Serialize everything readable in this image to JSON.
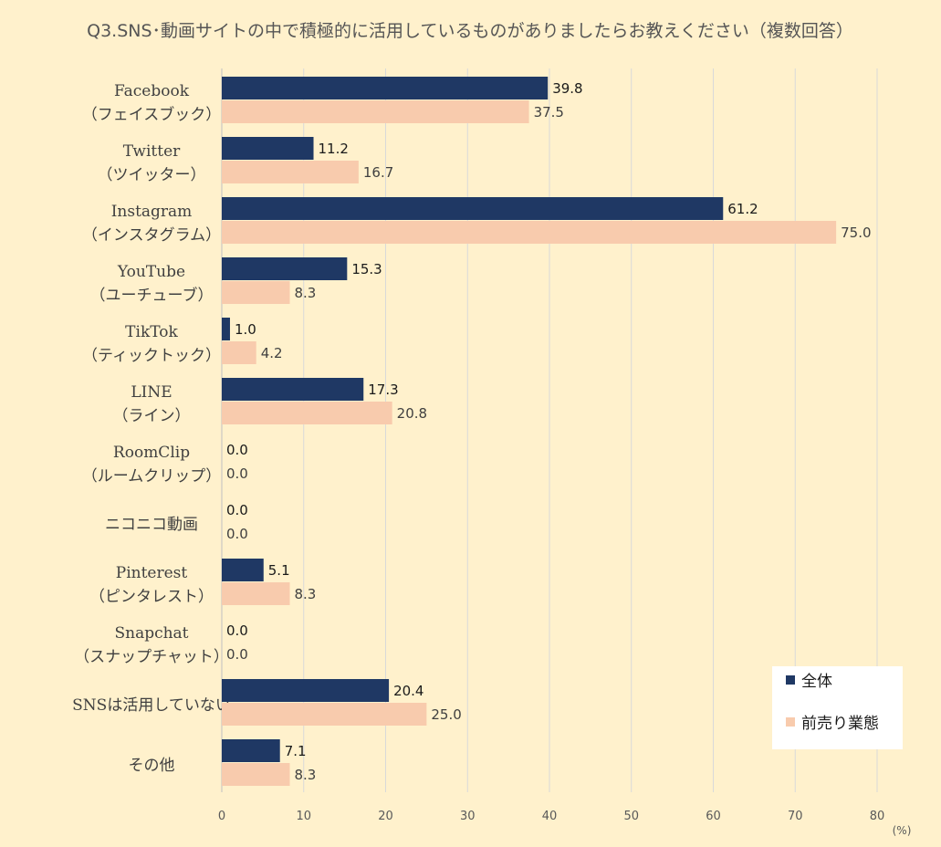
{
  "chart_data": {
    "type": "bar",
    "orientation": "horizontal",
    "title": "Q3.SNS･動画サイトの中で積極的に活用しているものがありましたらお教えください（複数回答）",
    "categories": [
      [
        "Facebook",
        "（フェイスブック）"
      ],
      [
        "Twitter",
        "（ツイッター）"
      ],
      [
        "Instagram",
        "（インスタグラム）"
      ],
      [
        "YouTube",
        "（ユーチューブ）"
      ],
      [
        "TikTok",
        "（ティックトック）"
      ],
      [
        "LINE",
        "（ライン）"
      ],
      [
        "RoomClip",
        "（ルームクリップ）"
      ],
      [
        "ニコニコ動画"
      ],
      [
        "Pinterest",
        "（ピンタレスト）"
      ],
      [
        "Snapchat",
        "（スナップチャット）"
      ],
      [
        "SNSは活用していない"
      ],
      [
        "その他"
      ]
    ],
    "series": [
      {
        "name": "全体",
        "color": "#1f3864",
        "values": [
          39.8,
          11.2,
          61.2,
          15.3,
          1.0,
          17.3,
          0.0,
          0.0,
          5.1,
          0.0,
          20.4,
          7.1
        ],
        "labels": [
          "39.8",
          "11.2",
          "61.2",
          "15.3",
          "1.0",
          "17.3",
          "0.0",
          "0.0",
          "5.1",
          "0.0",
          "20.4",
          "7.1"
        ]
      },
      {
        "name": "前売り業態",
        "color": "#f8cbad",
        "values": [
          37.5,
          16.7,
          75.0,
          8.3,
          4.2,
          20.8,
          0.0,
          0.0,
          8.3,
          0.0,
          25.0,
          8.3
        ],
        "labels": [
          "37.5",
          "16.7",
          "75.0",
          "8.3",
          "4.2",
          "20.8",
          "0.0",
          "0.0",
          "8.3",
          "0.0",
          "25.0",
          "8.3"
        ]
      }
    ],
    "xlim": [
      0,
      80
    ],
    "xticks": [
      "0",
      "10",
      "20",
      "30",
      "40",
      "50",
      "60",
      "70",
      "80"
    ],
    "unit": "(%)",
    "grid": true,
    "legend": "bottom-right"
  }
}
